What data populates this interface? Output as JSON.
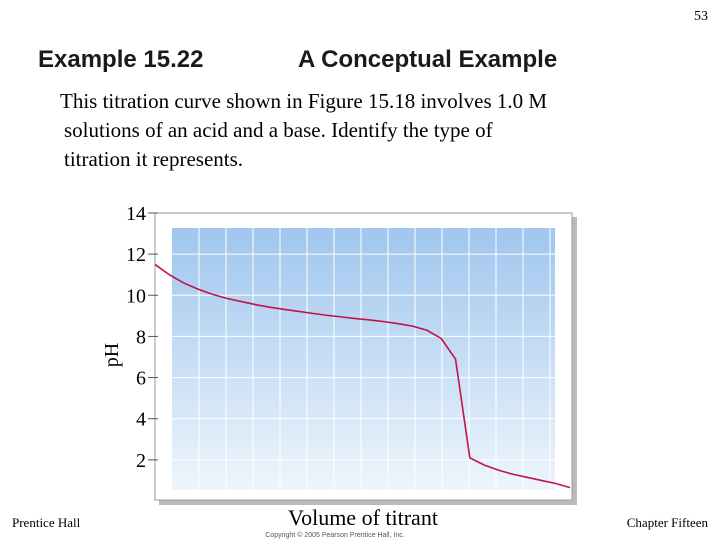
{
  "slide_number": "53",
  "title": "Example 15.22",
  "subtitle": "A Conceptual Example",
  "body": [
    "This titration curve shown in Figure 15.18 involves 1.0 M",
    "solutions of an acid and a base. Identify the type of",
    "titration it represents."
  ],
  "footer_left": "Prentice Hall",
  "footer_right": "Chapter Fifteen",
  "copyright": "Copyright © 2005 Pearson Prentice Hall, Inc.",
  "chart_data": {
    "type": "line",
    "x_label": "Volume of titrant",
    "y_label": "pH",
    "values": [
      11.5,
      11.0,
      10.6,
      10.3,
      10.05,
      9.85,
      9.7,
      9.55,
      9.42,
      9.32,
      9.22,
      9.12,
      9.03,
      8.95,
      8.87,
      8.8,
      8.72,
      8.62,
      8.5,
      8.3,
      7.9,
      6.9,
      2.1,
      1.75,
      1.5,
      1.3,
      1.15,
      1.0,
      0.85,
      0.65
    ],
    "color": "#c0144b",
    "ylim": [
      0,
      14
    ],
    "yticks": [
      2,
      4,
      6,
      8,
      10,
      12,
      14
    ],
    "grid": true
  }
}
